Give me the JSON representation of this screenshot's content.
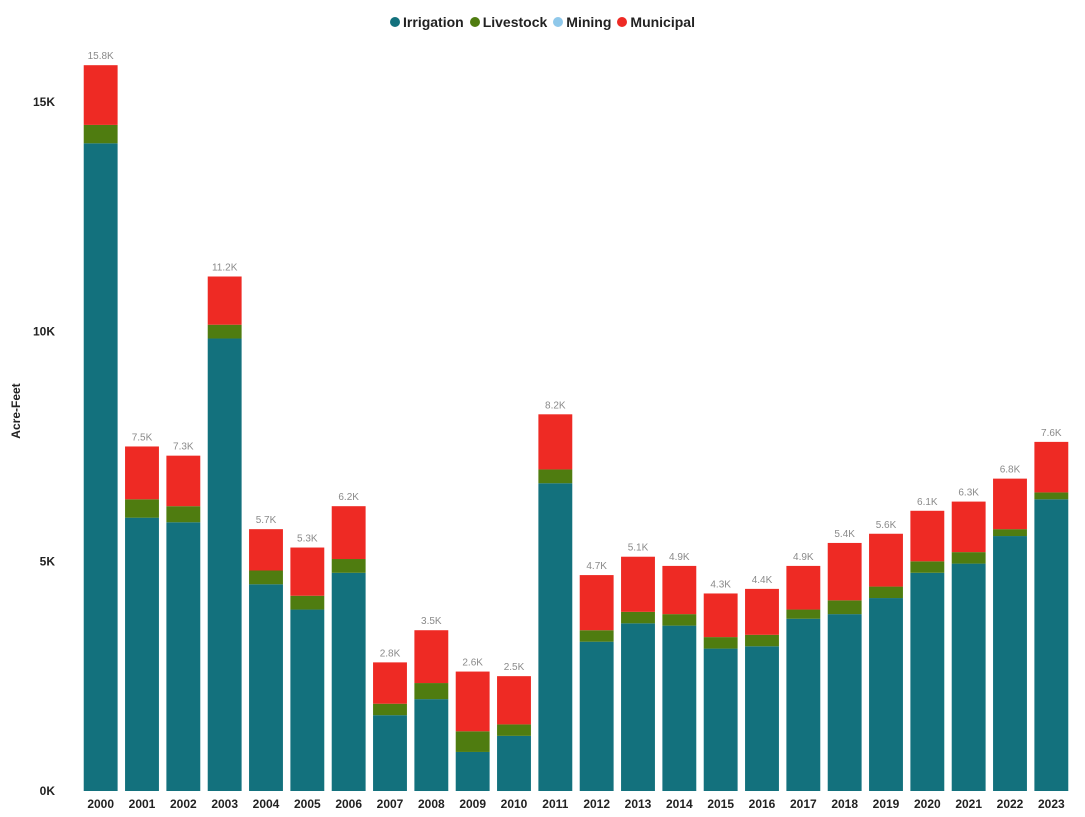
{
  "chart_data": {
    "type": "bar",
    "stacked": true,
    "title": "",
    "xlabel": "",
    "ylabel": "Acre-Feet",
    "ylim": [
      0,
      16000
    ],
    "yticks": [
      {
        "value": 0,
        "label": "0K"
      },
      {
        "value": 5000,
        "label": "5K"
      },
      {
        "value": 10000,
        "label": "10K"
      },
      {
        "value": 15000,
        "label": "15K"
      }
    ],
    "grid": false,
    "legend_position": "top-center",
    "categories": [
      "2000",
      "2001",
      "2002",
      "2003",
      "2004",
      "2005",
      "2006",
      "2007",
      "2008",
      "2009",
      "2010",
      "2011",
      "2012",
      "2013",
      "2014",
      "2015",
      "2016",
      "2017",
      "2018",
      "2019",
      "2020",
      "2021",
      "2022",
      "2023"
    ],
    "series": [
      {
        "name": "Irrigation",
        "color": "#13717d",
        "values": [
          14100,
          5950,
          5850,
          9850,
          4500,
          3950,
          4750,
          1650,
          2000,
          850,
          1200,
          6700,
          3250,
          3650,
          3600,
          3100,
          3150,
          3750,
          3850,
          4200,
          4750,
          4950,
          5550,
          6350
        ]
      },
      {
        "name": "Livestock",
        "color": "#4f7c10",
        "values": [
          400,
          400,
          350,
          300,
          300,
          300,
          300,
          250,
          350,
          450,
          250,
          300,
          250,
          250,
          250,
          250,
          250,
          200,
          300,
          250,
          250,
          250,
          150,
          150
        ]
      },
      {
        "name": "Mining",
        "color": "#8fc8ea",
        "values": [
          0,
          0,
          0,
          0,
          0,
          0,
          0,
          0,
          0,
          0,
          0,
          0,
          0,
          0,
          0,
          0,
          0,
          0,
          0,
          0,
          0,
          0,
          0,
          0
        ]
      },
      {
        "name": "Municipal",
        "color": "#ee2a24",
        "values": [
          1300,
          1150,
          1100,
          1050,
          900,
          1050,
          1150,
          900,
          1150,
          1300,
          1050,
          1200,
          1200,
          1200,
          1050,
          950,
          1000,
          950,
          1250,
          1150,
          1100,
          1100,
          1100,
          1100
        ]
      }
    ],
    "total_labels": [
      "15.8K",
      "7.5K",
      "7.3K",
      "11.2K",
      "5.7K",
      "5.3K",
      "6.2K",
      "2.8K",
      "3.5K",
      "2.6K",
      "2.5K",
      "8.2K",
      "4.7K",
      "5.1K",
      "4.9K",
      "4.3K",
      "4.4K",
      "4.9K",
      "5.4K",
      "5.6K",
      "6.1K",
      "6.3K",
      "6.8K",
      "7.6K"
    ]
  }
}
